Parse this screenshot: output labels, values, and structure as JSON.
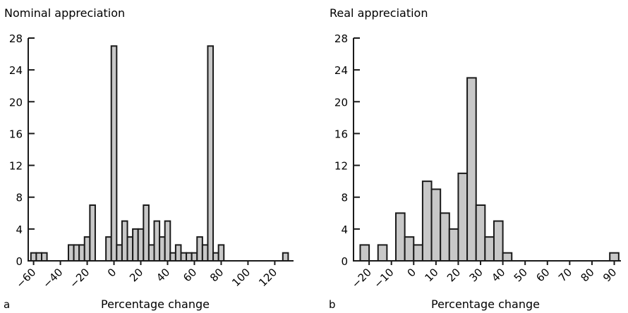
{
  "chart_data": [
    {
      "type": "bar",
      "panel_label": "a",
      "title": "Nominal appreciation",
      "xlabel": "Percentage change",
      "ylabel": "",
      "ylim": [
        0,
        28
      ],
      "yticks": [
        0,
        4,
        8,
        12,
        16,
        20,
        24,
        28
      ],
      "xlim": [
        -64,
        134
      ],
      "xticks": [
        -60,
        -40,
        -20,
        0,
        20,
        40,
        60,
        80,
        100,
        120
      ],
      "xtick_labels": [
        "−60",
        "−40",
        "−20",
        "0",
        "20",
        "40",
        "60",
        "80",
        "100",
        "120"
      ],
      "bin_width": 4,
      "bins": [
        {
          "x": -62,
          "value": 1
        },
        {
          "x": -58,
          "value": 1
        },
        {
          "x": -54,
          "value": 1
        },
        {
          "x": -34,
          "value": 2
        },
        {
          "x": -30,
          "value": 2
        },
        {
          "x": -26,
          "value": 2
        },
        {
          "x": -22,
          "value": 3
        },
        {
          "x": -18,
          "value": 7
        },
        {
          "x": -6,
          "value": 3
        },
        {
          "x": -2,
          "value": 27
        },
        {
          "x": 2,
          "value": 2
        },
        {
          "x": 6,
          "value": 5
        },
        {
          "x": 10,
          "value": 3
        },
        {
          "x": 14,
          "value": 4
        },
        {
          "x": 18,
          "value": 4
        },
        {
          "x": 22,
          "value": 7
        },
        {
          "x": 26,
          "value": 2
        },
        {
          "x": 30,
          "value": 5
        },
        {
          "x": 34,
          "value": 3
        },
        {
          "x": 38,
          "value": 5
        },
        {
          "x": 42,
          "value": 1
        },
        {
          "x": 46,
          "value": 2
        },
        {
          "x": 50,
          "value": 1
        },
        {
          "x": 54,
          "value": 1
        },
        {
          "x": 58,
          "value": 1
        },
        {
          "x": 62,
          "value": 3
        },
        {
          "x": 66,
          "value": 2
        },
        {
          "x": 70,
          "value": 27
        },
        {
          "x": 74,
          "value": 1
        },
        {
          "x": 78,
          "value": 2
        },
        {
          "x": 126,
          "value": 1
        }
      ]
    },
    {
      "type": "bar",
      "panel_label": "b",
      "title": "Real appreciation",
      "xlabel": "Percentage change",
      "ylabel": "",
      "ylim": [
        0,
        28
      ],
      "yticks": [
        0,
        4,
        8,
        12,
        16,
        20,
        24,
        28
      ],
      "xlim": [
        -27,
        93
      ],
      "xticks": [
        -20,
        -10,
        0,
        10,
        20,
        30,
        40,
        50,
        60,
        70,
        80,
        90
      ],
      "xtick_labels": [
        "−20",
        "−10",
        "0",
        "10",
        "20",
        "30",
        "40",
        "50",
        "60",
        "70",
        "80",
        "90"
      ],
      "bin_width": 4,
      "bins": [
        {
          "x": -24,
          "value": 2
        },
        {
          "x": -16,
          "value": 2
        },
        {
          "x": -8,
          "value": 6
        },
        {
          "x": -4,
          "value": 3
        },
        {
          "x": 0,
          "value": 2
        },
        {
          "x": 4,
          "value": 10
        },
        {
          "x": 8,
          "value": 9
        },
        {
          "x": 12,
          "value": 6
        },
        {
          "x": 16,
          "value": 4
        },
        {
          "x": 20,
          "value": 11
        },
        {
          "x": 24,
          "value": 23
        },
        {
          "x": 28,
          "value": 7
        },
        {
          "x": 32,
          "value": 3
        },
        {
          "x": 36,
          "value": 5
        },
        {
          "x": 40,
          "value": 1
        },
        {
          "x": 88,
          "value": 1
        }
      ]
    }
  ]
}
